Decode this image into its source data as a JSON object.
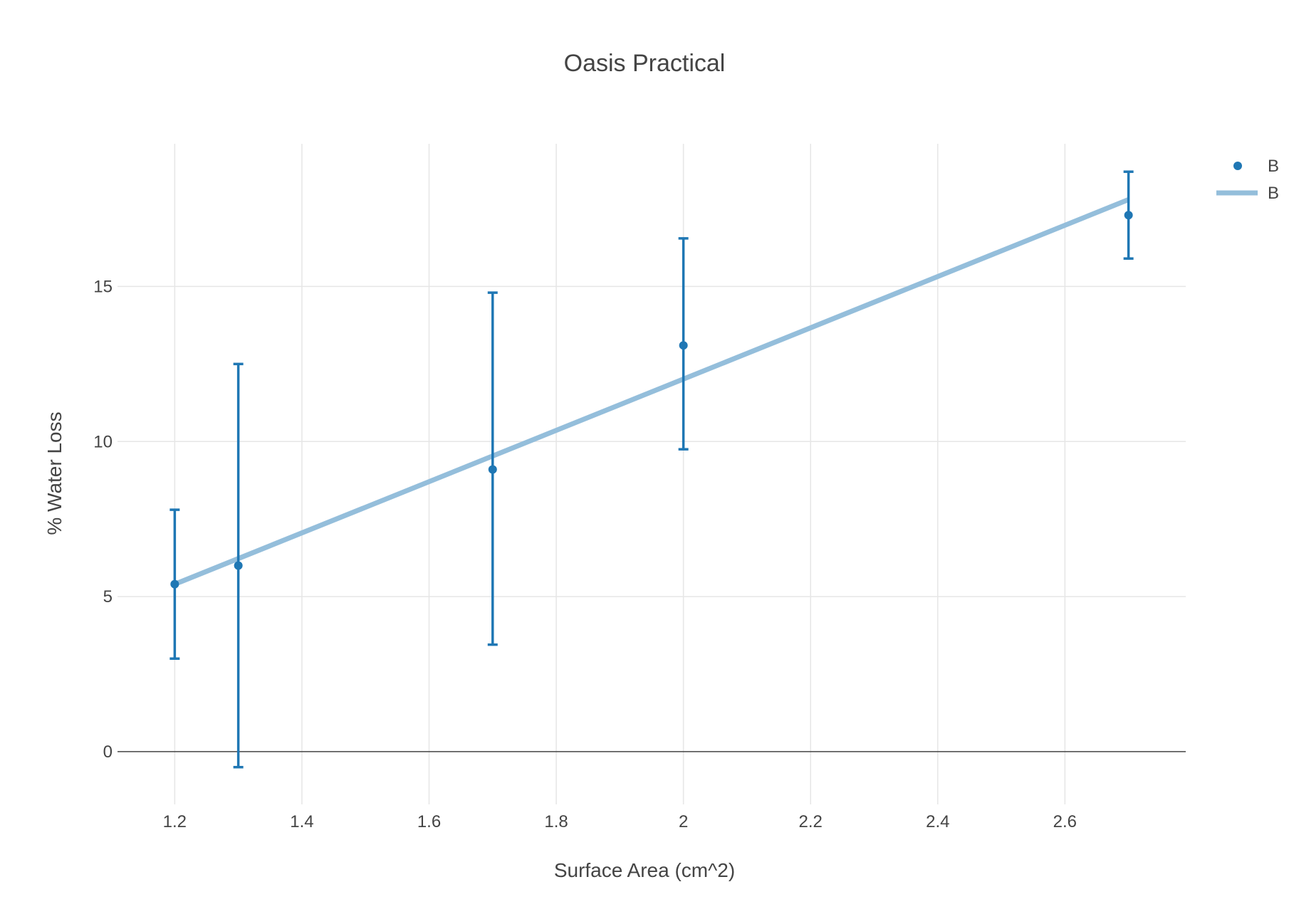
{
  "chart_data": {
    "type": "scatter",
    "title": "Oasis Practical",
    "xlabel": "Surface Area (cm^2)",
    "ylabel": "% Water Loss",
    "xlim": [
      1.11,
      2.79
    ],
    "ylim": [
      -1.7,
      19.6
    ],
    "x_ticks": [
      1.2,
      1.4,
      1.6,
      1.8,
      2.0,
      2.2,
      2.4,
      2.6
    ],
    "x_tick_labels": [
      "1.2",
      "1.4",
      "1.6",
      "1.8",
      "2",
      "2.2",
      "2.4",
      "2.6"
    ],
    "y_ticks": [
      0,
      5,
      10,
      15
    ],
    "y_tick_labels": [
      "0",
      "5",
      "10",
      "15"
    ],
    "grid": true,
    "legend_position": "top-right",
    "series": [
      {
        "name": "B",
        "mode": "markers",
        "color": "#1f77b4",
        "x": [
          1.2,
          1.3,
          1.7,
          2.0,
          2.7
        ],
        "y": [
          5.4,
          6.0,
          9.1,
          13.1,
          17.3
        ],
        "error_minus": [
          2.4,
          6.5,
          5.65,
          3.35,
          1.4
        ],
        "error_plus": [
          2.4,
          6.5,
          5.7,
          3.45,
          1.4
        ]
      },
      {
        "name": "B",
        "mode": "lines",
        "color": "#94bedb",
        "x": [
          1.2,
          2.7
        ],
        "y": [
          5.4,
          17.8
        ]
      }
    ]
  }
}
